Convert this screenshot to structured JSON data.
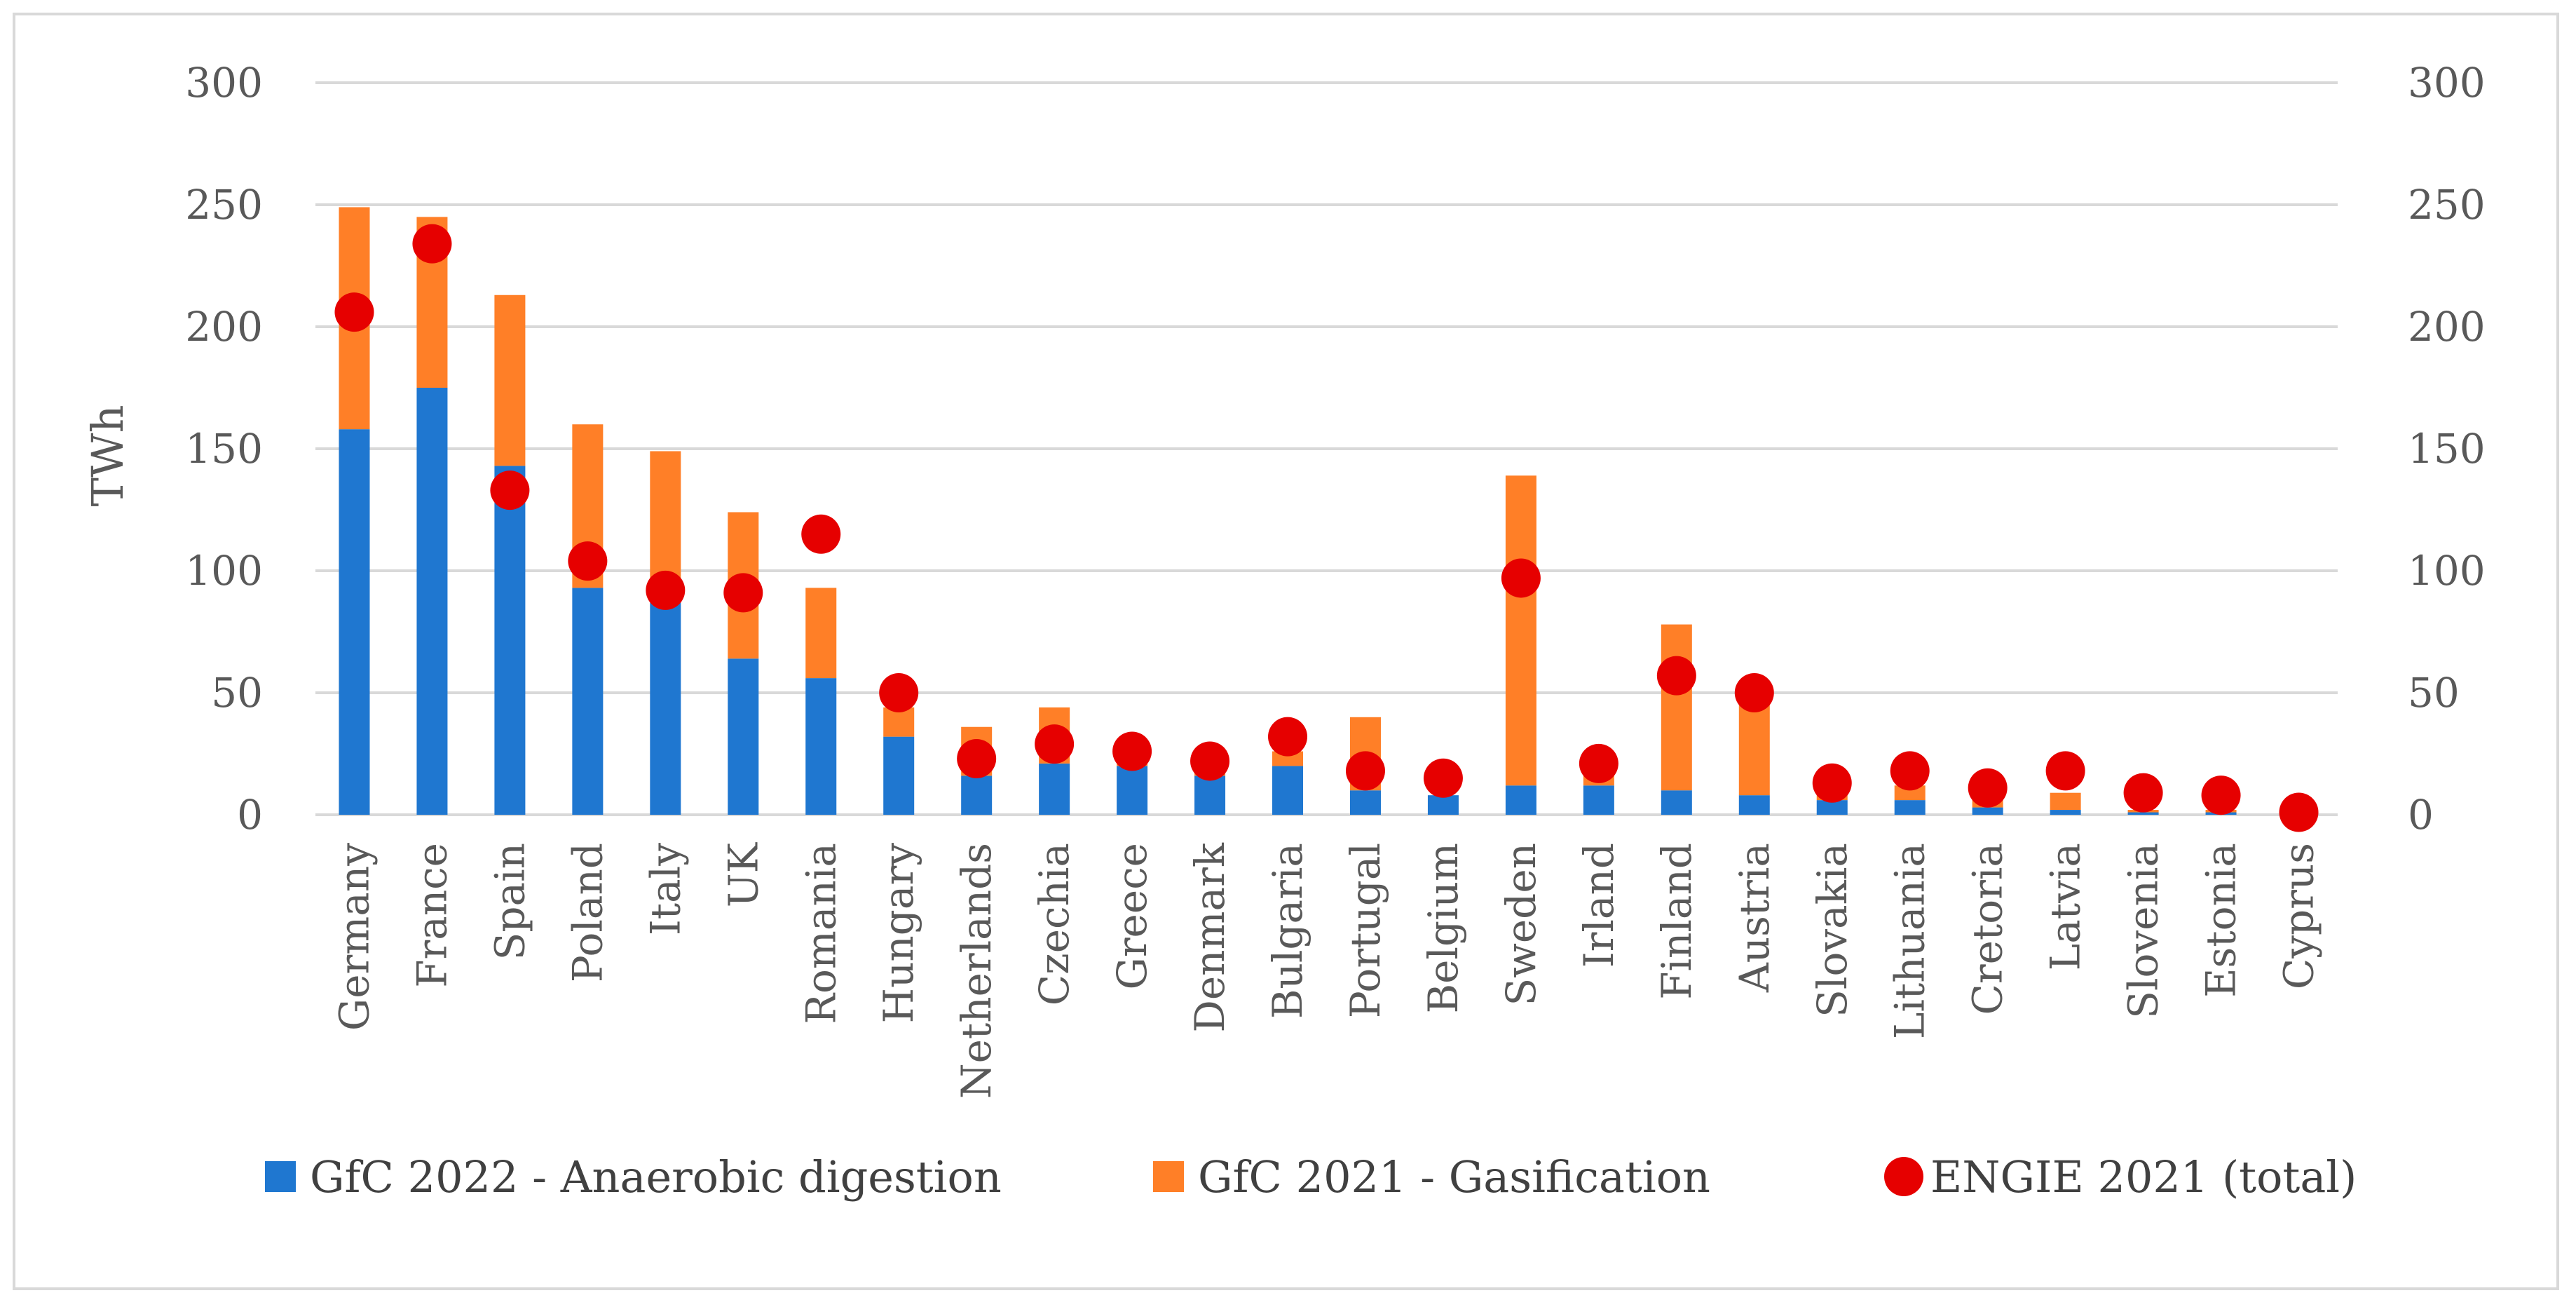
{
  "chart_data": {
    "type": "bar",
    "stacked": true,
    "title": "",
    "ylabel": "TWh",
    "xlabel": "",
    "ylim": [
      0,
      300
    ],
    "yticks": [
      0,
      50,
      100,
      150,
      200,
      250,
      300
    ],
    "grid": true,
    "legend_position": "bottom",
    "categories": [
      "Germany",
      "France",
      "Spain",
      "Poland",
      "Italy",
      "UK",
      "Romania",
      "Hungary",
      "Netherlands",
      "Czechia",
      "Greece",
      "Denmark",
      "Bulgaria",
      "Portugal",
      "Belgium",
      "Sweden",
      "Irland",
      "Finland",
      "Austria",
      "Slovakia",
      "Lithuania",
      "Cretoria",
      "Latvia",
      "Slovenia",
      "Estonia",
      "Cyprus"
    ],
    "series": [
      {
        "name": "GfC 2022 - Anaerobic digestion",
        "kind": "bar",
        "color": "#1f77d0",
        "values": [
          158,
          175,
          143,
          93,
          87,
          64,
          56,
          32,
          16,
          21,
          20,
          16,
          20,
          10,
          8,
          12,
          12,
          10,
          8,
          6,
          6,
          3,
          2,
          1,
          1,
          0
        ]
      },
      {
        "name": "GfC 2021 - Gasification",
        "kind": "bar",
        "color": "#ff7f27",
        "values": [
          91,
          70,
          70,
          67,
          62,
          60,
          37,
          12,
          20,
          23,
          6,
          6,
          6,
          30,
          0,
          127,
          4,
          68,
          44,
          2,
          6,
          4,
          7,
          1,
          1,
          0
        ]
      },
      {
        "name": "ENGIE 2021 (total)",
        "kind": "marker",
        "color": "#e60000",
        "values": [
          206,
          234,
          133,
          104,
          92,
          91,
          115,
          50,
          23,
          29,
          26,
          22,
          32,
          18,
          15,
          97,
          21,
          57,
          50,
          13,
          18,
          11,
          18,
          9,
          8,
          1
        ]
      }
    ]
  }
}
